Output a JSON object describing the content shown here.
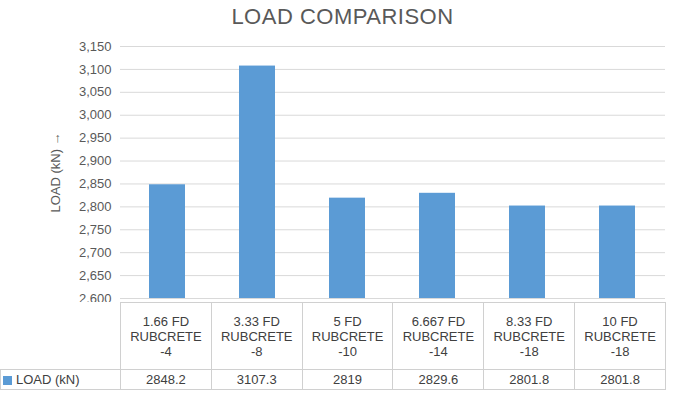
{
  "chart_data": {
    "type": "bar",
    "title": "LOAD COMPARISON",
    "y_label": "LOAD (kN)",
    "categories": [
      "1.66 FD RUBCRETE -4",
      "3.33 FD RUBCRETE -8",
      "5 FD RUBCRETE -10",
      "6.667 FD RUBCRETE -14",
      "8.33 FD RUBCRETE -18",
      "10 FD RUBCRETE -18"
    ],
    "series": [
      {
        "name": "LOAD (kN)",
        "color": "#5b9bd5",
        "values": [
          2848.2,
          3107.3,
          2819,
          2829.6,
          2801.8,
          2801.8
        ]
      }
    ],
    "ylim": [
      2600,
      3150
    ],
    "yticks": [
      2600,
      2650,
      2700,
      2750,
      2800,
      2850,
      2900,
      2950,
      3000,
      3050,
      3100,
      3150
    ],
    "grid": true,
    "data_labels": true
  }
}
